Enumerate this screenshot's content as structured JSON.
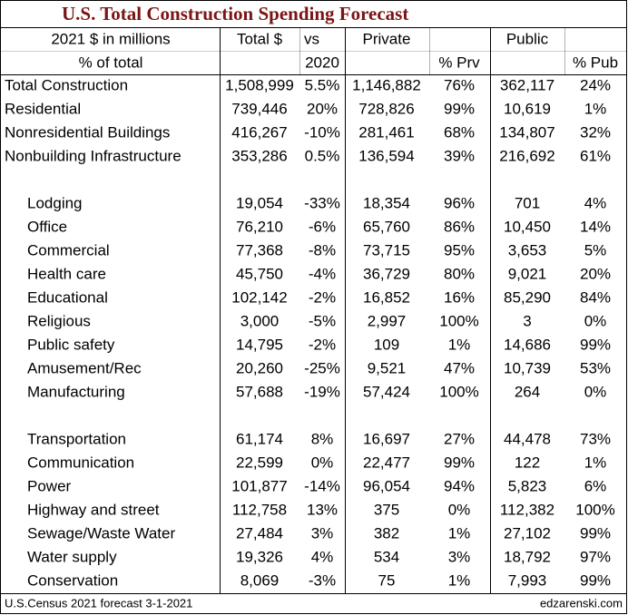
{
  "header": {
    "title": "U.S. Total Construction Spending Forecast"
  },
  "table": {
    "header_rows": [
      [
        "2021 $ in millions",
        "Total $",
        "vs",
        "Private",
        "Public"
      ],
      [
        "% of total",
        "2020",
        "% Prv",
        "% Pub"
      ]
    ],
    "sections": [
      {
        "rows": [
          [
            "Total Construction",
            "1,508,999",
            "5.5%",
            "1,146,882",
            "76%",
            "362,117",
            "24%"
          ],
          [
            "Residential",
            "739,446",
            "20%",
            "728,826",
            "99%",
            "10,619",
            "1%"
          ],
          [
            "Nonresidential Buildings",
            "416,267",
            "-10%",
            "281,461",
            "68%",
            "134,807",
            "32%"
          ],
          [
            "Nonbuilding Infrastructure",
            "353,286",
            "0.5%",
            "136,594",
            "39%",
            "216,692",
            "61%"
          ]
        ]
      },
      {
        "rows": [
          [
            "Lodging",
            "19,054",
            "-33%",
            "18,354",
            "96%",
            "701",
            "4%"
          ],
          [
            "Office",
            "76,210",
            "-6%",
            "65,760",
            "86%",
            "10,450",
            "14%"
          ],
          [
            "Commercial",
            "77,368",
            "-8%",
            "73,715",
            "95%",
            "3,653",
            "5%"
          ],
          [
            "Health care",
            "45,750",
            "-4%",
            "36,729",
            "80%",
            "9,021",
            "20%"
          ],
          [
            "Educational",
            "102,142",
            "-2%",
            "16,852",
            "16%",
            "85,290",
            "84%"
          ],
          [
            "Religious",
            "3,000",
            "-5%",
            "2,997",
            "100%",
            "3",
            "0%"
          ],
          [
            "Public safety",
            "14,795",
            "-2%",
            "109",
            "1%",
            "14,686",
            "99%"
          ],
          [
            "Amusement/Rec",
            "20,260",
            "-25%",
            "9,521",
            "47%",
            "10,739",
            "53%"
          ],
          [
            "Manufacturing",
            "57,688",
            "-19%",
            "57,424",
            "100%",
            "264",
            "0%"
          ]
        ]
      },
      {
        "rows": [
          [
            "Transportation",
            "61,174",
            "8%",
            "16,697",
            "27%",
            "44,478",
            "73%"
          ],
          [
            "Communication",
            "22,599",
            "0%",
            "22,477",
            "99%",
            "122",
            "1%"
          ],
          [
            "Power",
            "101,877",
            "-14%",
            "96,054",
            "94%",
            "5,823",
            "6%"
          ],
          [
            "Highway and street",
            "112,758",
            "13%",
            "375",
            "0%",
            "112,382",
            "100%"
          ],
          [
            "Sewage/Waste Water",
            "27,484",
            "3%",
            "382",
            "1%",
            "27,102",
            "99%"
          ],
          [
            "Water supply",
            "19,326",
            "4%",
            "534",
            "3%",
            "18,792",
            "97%"
          ],
          [
            "Conservation",
            "8,069",
            "-3%",
            "75",
            "1%",
            "7,993",
            "99%"
          ]
        ]
      }
    ]
  },
  "footer": {
    "source": "U.S.Census 2021 forecast 3-1-2021",
    "site": "edzarenski.com"
  }
}
